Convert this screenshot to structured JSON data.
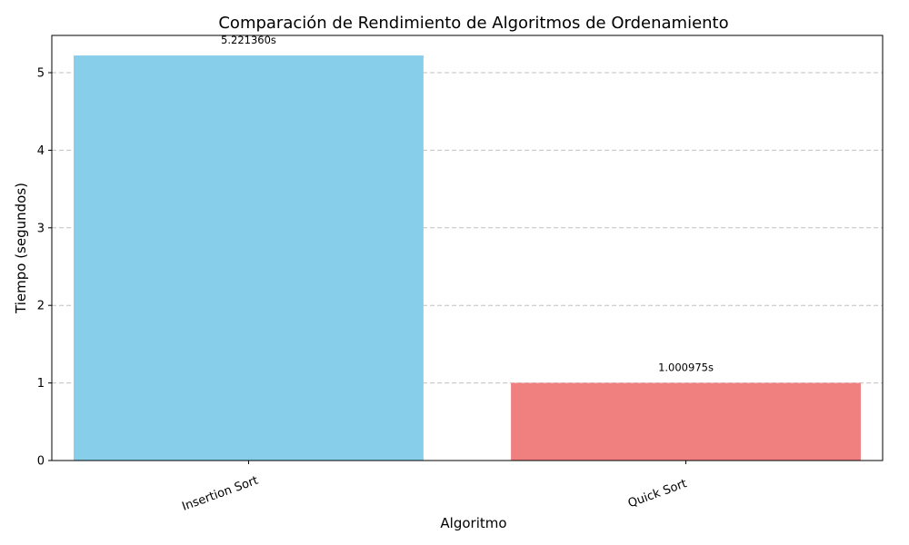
{
  "chart_data": {
    "type": "bar",
    "title": "Comparación de Rendimiento de Algoritmos de Ordenamiento",
    "xlabel": "Algoritmo",
    "ylabel": "Tiempo (segundos)",
    "categories": [
      "Insertion Sort",
      "Quick Sort"
    ],
    "values": [
      5.22136,
      1.000975
    ],
    "data_labels": [
      "5.221360s",
      "1.000975s"
    ],
    "colors": [
      "#87ceeb",
      "#f08080"
    ],
    "ylim": [
      0,
      5.48
    ],
    "yticks": [
      0,
      1,
      2,
      3,
      4,
      5
    ],
    "ytick_labels": [
      "0",
      "1",
      "2",
      "3",
      "4",
      "5"
    ],
    "grid": "y-dashed",
    "xtick_rotation": -20
  }
}
